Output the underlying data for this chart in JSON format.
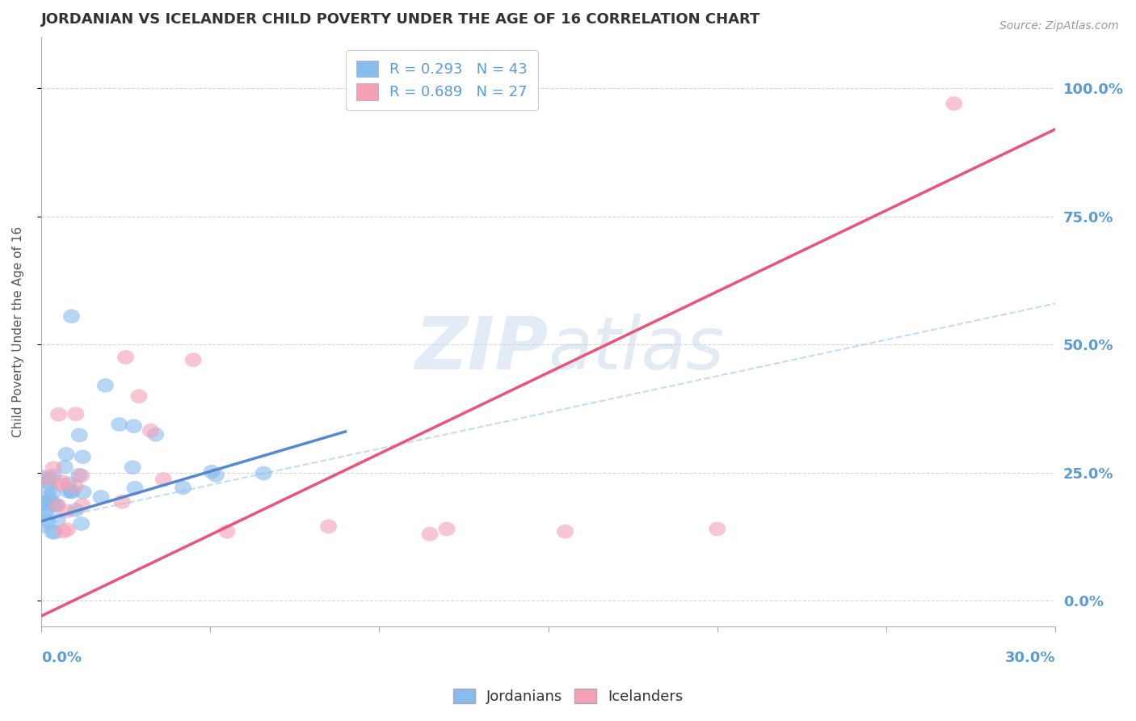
{
  "title": "JORDANIAN VS ICELANDER CHILD POVERTY UNDER THE AGE OF 16 CORRELATION CHART",
  "source": "Source: ZipAtlas.com",
  "xlim": [
    0.0,
    0.3
  ],
  "ylim": [
    -0.05,
    1.1
  ],
  "ylabel_ticks": [
    0.0,
    0.25,
    0.5,
    0.75,
    1.0
  ],
  "ylabel_labels": [
    "0.0%",
    "25.0%",
    "50.0%",
    "75.0%",
    "100.0%"
  ],
  "jordanian_color": "#88BBEE",
  "icelander_color": "#F4A0B5",
  "jordanian_line_color": "#5588CC",
  "icelander_line_color": "#E8547A",
  "jordanian_R": 0.293,
  "jordanian_N": 43,
  "icelander_R": 0.689,
  "icelander_N": 27,
  "legend_label_1": "R = 0.293   N = 43",
  "legend_label_2": "R = 0.689   N = 27",
  "watermark": "ZIPatlas",
  "background_color": "#ffffff",
  "grid_color": "#cccccc",
  "title_color": "#333333",
  "axis_label_color": "#5B9BD5",
  "jord_line_x0": 0.0,
  "jord_line_y0": 0.155,
  "jord_line_x1": 0.09,
  "jord_line_y1": 0.33,
  "ice_line_x0": 0.0,
  "ice_line_y0": -0.03,
  "ice_line_x1": 0.3,
  "ice_line_y1": 0.92,
  "dash_line_x0": 0.0,
  "dash_line_y0": 0.155,
  "dash_line_x1": 0.3,
  "dash_line_y1": 0.58
}
